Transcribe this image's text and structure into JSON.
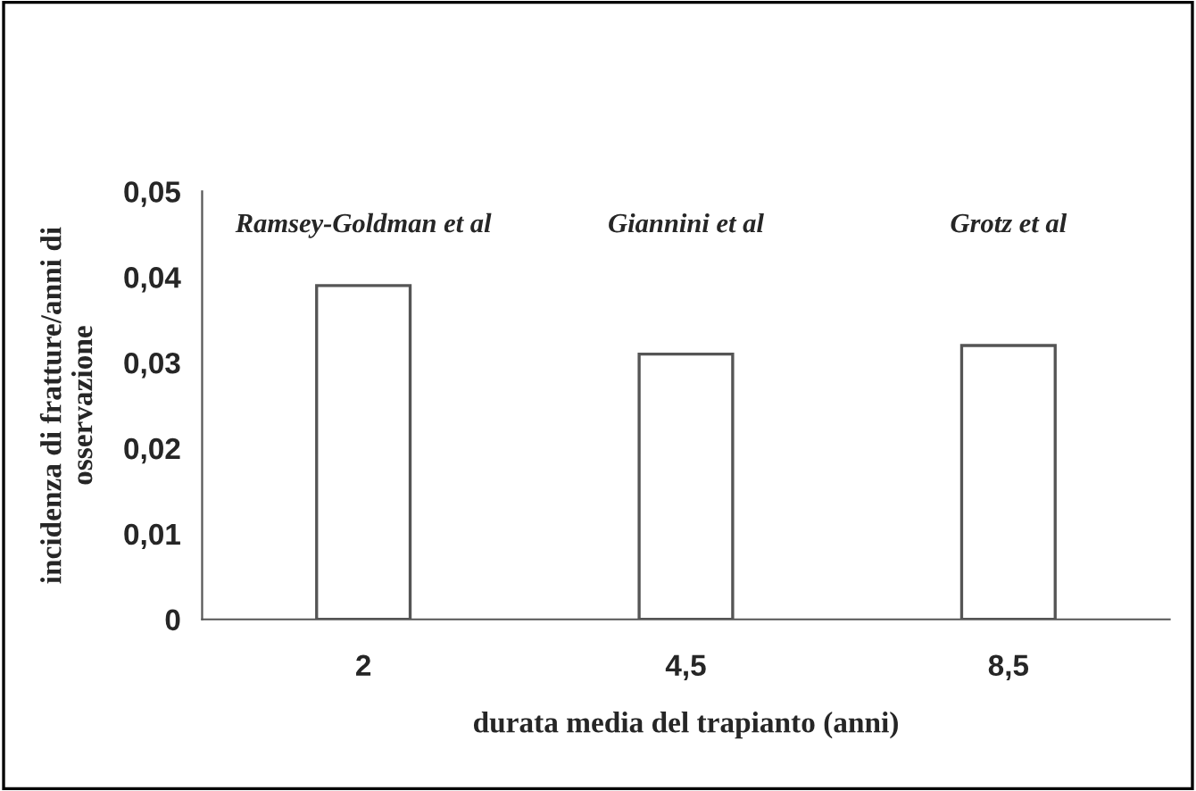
{
  "chart_data": {
    "type": "bar",
    "xlabel": "durata media del trapianto (anni)",
    "ylabel": "incidenza di fratture/anni di\nosservazione",
    "categories": [
      "2",
      "4,5",
      "8,5"
    ],
    "values": [
      0.039,
      0.031,
      0.032
    ],
    "color": "#ffffff",
    "ylim": [
      0,
      0.05
    ],
    "yticks": [
      {
        "value": 0,
        "label": "0"
      },
      {
        "value": 0.01,
        "label": "0,01"
      },
      {
        "value": 0.02,
        "label": "0,02"
      },
      {
        "value": 0.03,
        "label": "0,03"
      },
      {
        "value": 0.04,
        "label": "0,04"
      },
      {
        "value": 0.05,
        "label": "0,05"
      }
    ],
    "grid": false,
    "annotations": [
      "Ramsey-Goldman et al",
      "Giannini et al",
      "Grotz et al"
    ]
  }
}
